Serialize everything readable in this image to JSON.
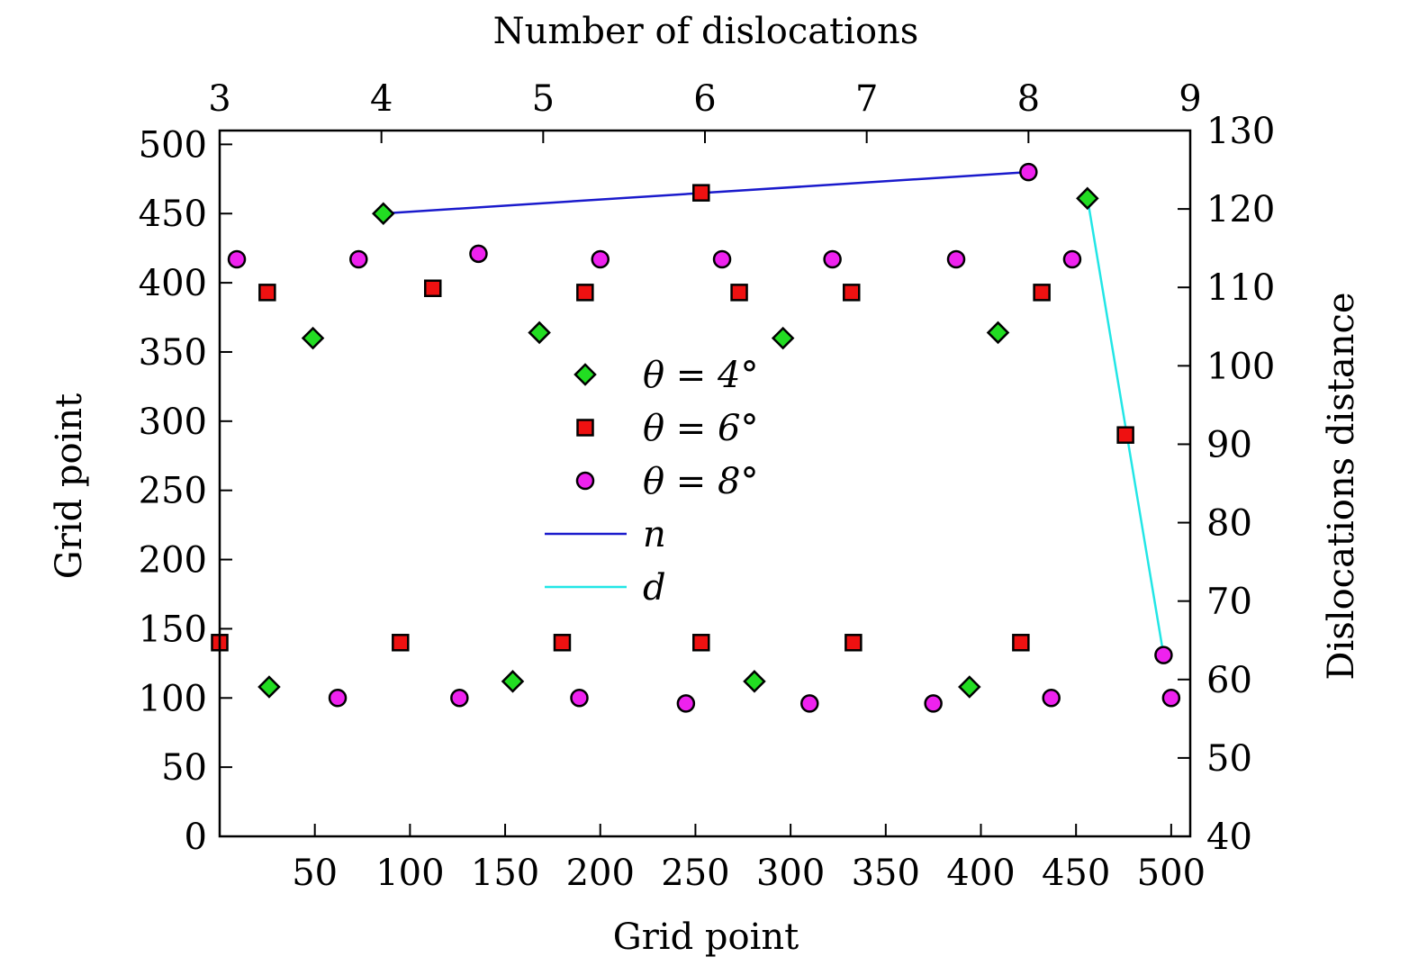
{
  "chart_data": {
    "type": "scatter",
    "title": "",
    "axes": {
      "bottom": {
        "label": "Grid point",
        "range": [
          0,
          510
        ],
        "ticks": [
          50,
          100,
          150,
          200,
          250,
          300,
          350,
          400,
          450,
          500
        ]
      },
      "left": {
        "label": "Grid point",
        "range": [
          0,
          510
        ],
        "ticks": [
          0,
          50,
          100,
          150,
          200,
          250,
          300,
          350,
          400,
          450,
          500
        ]
      },
      "top": {
        "label": "Number of dislocations",
        "range": [
          3,
          9
        ],
        "ticks": [
          3,
          4,
          5,
          6,
          7,
          8,
          9
        ]
      },
      "right": {
        "label": "Dislocations  distance",
        "range": [
          40,
          130
        ],
        "ticks": [
          40,
          50,
          60,
          70,
          80,
          90,
          100,
          110,
          120,
          130
        ]
      }
    },
    "legend": {
      "placement": "center",
      "entries": [
        {
          "key": "theta4",
          "label": "θ = 4°"
        },
        {
          "key": "theta6",
          "label": "θ = 6°"
        },
        {
          "key": "theta8",
          "label": "θ = 8°"
        },
        {
          "key": "n",
          "label": "n"
        },
        {
          "key": "d",
          "label": "d"
        }
      ]
    },
    "series": [
      {
        "key": "theta4",
        "name": "θ = 4°",
        "marker": "diamond",
        "color": "#22dd22",
        "points": [
          [
            26,
            108
          ],
          [
            49,
            360
          ],
          [
            86,
            450
          ],
          [
            154,
            112
          ],
          [
            168,
            364
          ],
          [
            281,
            112
          ],
          [
            296,
            360
          ],
          [
            394,
            108
          ],
          [
            409,
            364
          ],
          [
            456,
            461
          ]
        ]
      },
      {
        "key": "theta6",
        "name": "θ = 6°",
        "marker": "square",
        "color": "#ee1111",
        "points": [
          [
            0,
            140
          ],
          [
            25,
            393
          ],
          [
            95,
            140
          ],
          [
            112,
            396
          ],
          [
            180,
            140
          ],
          [
            192,
            393
          ],
          [
            253,
            465
          ],
          [
            253,
            140
          ],
          [
            273,
            393
          ],
          [
            333,
            140
          ],
          [
            332,
            393
          ],
          [
            421,
            140
          ],
          [
            432,
            393
          ],
          [
            476,
            290
          ]
        ]
      },
      {
        "key": "theta8",
        "name": "θ = 8°",
        "marker": "circle",
        "color": "#ee22ee",
        "points": [
          [
            9,
            417
          ],
          [
            62,
            100
          ],
          [
            73,
            417
          ],
          [
            126,
            100
          ],
          [
            136,
            421
          ],
          [
            189,
            100
          ],
          [
            200,
            417
          ],
          [
            245,
            96
          ],
          [
            264,
            417
          ],
          [
            310,
            96
          ],
          [
            322,
            417
          ],
          [
            375,
            96
          ],
          [
            387,
            417
          ],
          [
            437,
            100
          ],
          [
            448,
            417
          ],
          [
            425,
            480
          ],
          [
            496,
            131
          ],
          [
            500,
            100
          ]
        ]
      },
      {
        "key": "n",
        "name": "n",
        "type": "line",
        "color": "#1a1acc",
        "x_axis": "top",
        "y_axis": "left",
        "points": [
          [
            4,
            450
          ],
          [
            6,
            465
          ],
          [
            8,
            480
          ]
        ]
      },
      {
        "key": "d",
        "name": "d",
        "type": "line",
        "color": "#22e6e6",
        "x_axis": "bottom",
        "y_axis": "left",
        "points": [
          [
            456,
            461
          ],
          [
            496,
            131
          ]
        ]
      }
    ]
  }
}
